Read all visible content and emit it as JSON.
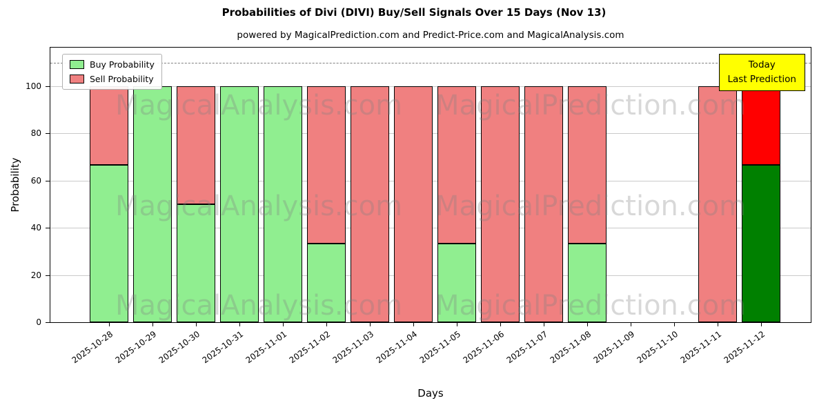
{
  "chart_data": {
    "type": "bar",
    "stacked": true,
    "title": "Probabilities of Divi (DIVI) Buy/Sell Signals Over 15 Days (Nov 13)",
    "subtitle": "powered by MagicalPrediction.com and Predict-Price.com and MagicalAnalysis.com",
    "xlabel": "Days",
    "ylabel": "Probability",
    "ylim": [
      0,
      116.3
    ],
    "yticks": [
      0,
      20,
      40,
      60,
      80,
      100
    ],
    "grid": "horizontal",
    "threshold_line": {
      "y": 110,
      "style": "dashed",
      "color": "#7f7f7f"
    },
    "legend_position": "upper-left",
    "categories": [
      "2025-10-28",
      "2025-10-29",
      "2025-10-30",
      "2025-10-31",
      "2025-11-01",
      "2025-11-02",
      "2025-11-03",
      "2025-11-04",
      "2025-11-05",
      "2025-11-06",
      "2025-11-07",
      "2025-11-08",
      "2025-11-09",
      "2025-11-10",
      "2025-11-11",
      "2025-11-12"
    ],
    "series": [
      {
        "name": "Buy Probability",
        "color": "#90ee90",
        "values": [
          66.67,
          100,
          50,
          100,
          100,
          33.33,
          0,
          0,
          33.33,
          0,
          0,
          33.33,
          0,
          0,
          0,
          66.67
        ]
      },
      {
        "name": "Sell Probability",
        "color": "#f08080",
        "values": [
          33.33,
          0,
          50,
          0,
          0,
          66.67,
          100,
          100,
          66.67,
          100,
          100,
          66.67,
          0,
          0,
          100,
          33.33
        ]
      }
    ],
    "today_bar": {
      "category": "2025-11-12",
      "index": 15,
      "colors": [
        "#008000",
        "#ff0000"
      ]
    },
    "annotation": {
      "lines": [
        "Today",
        "Last Prediction"
      ],
      "bg_color": "#ffff00"
    },
    "watermarks": [
      "MagicalAnalysis.com",
      "MagicalPrediction.com"
    ],
    "bar_edge_color": "#000000"
  }
}
